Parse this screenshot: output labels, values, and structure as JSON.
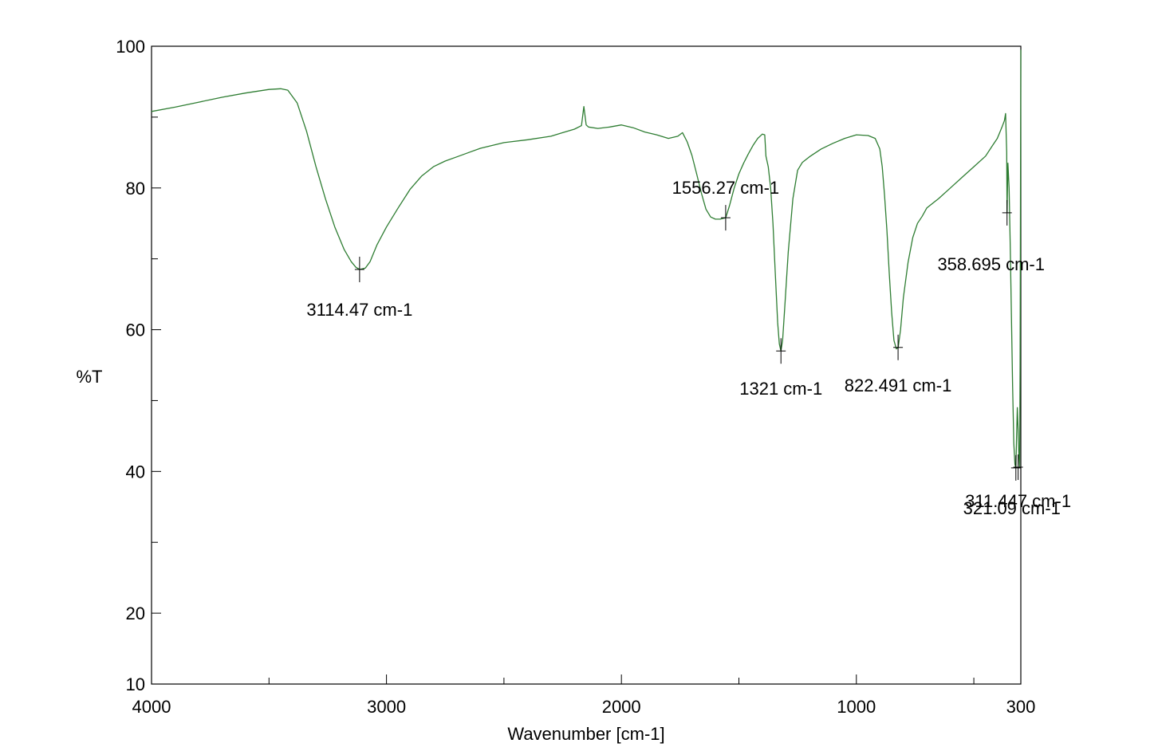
{
  "chart_data": {
    "type": "line",
    "xlabel": "Wavenumber [cm-1]",
    "ylabel": "%T",
    "xlim": [
      4000,
      300
    ],
    "ylim": [
      10,
      100
    ],
    "x_reversed": true,
    "x_ticks": [
      {
        "value": 4000,
        "label": "4000"
      },
      {
        "value": 3000,
        "label": "3000"
      },
      {
        "value": 2000,
        "label": "2000"
      },
      {
        "value": 1000,
        "label": "1000"
      },
      {
        "value": 300,
        "label": "300"
      }
    ],
    "x_minor_ticks": [
      3500,
      2500,
      1500,
      500
    ],
    "y_ticks": [
      {
        "value": 100,
        "label": "100"
      },
      {
        "value": 80,
        "label": "80"
      },
      {
        "value": 60,
        "label": "60"
      },
      {
        "value": 40,
        "label": "40"
      },
      {
        "value": 20,
        "label": "20"
      },
      {
        "value": 10,
        "label": "10"
      }
    ],
    "y_minor_ticks": [
      90,
      70,
      50,
      30
    ],
    "grid": false,
    "series_color": "#2e7d32",
    "series": [
      {
        "x": [
          4000,
          3900,
          3800,
          3700,
          3600,
          3500,
          3450,
          3420,
          3380,
          3340,
          3300,
          3260,
          3220,
          3180,
          3150,
          3130,
          3114,
          3090,
          3070,
          3040,
          3000,
          2950,
          2900,
          2850,
          2800,
          2750,
          2700,
          2650,
          2600,
          2500,
          2400,
          2300,
          2250,
          2200,
          2170,
          2160,
          2150,
          2140,
          2100,
          2050,
          2000,
          1950,
          1900,
          1850,
          1800,
          1760,
          1740,
          1720,
          1700,
          1680,
          1660,
          1640,
          1620,
          1600,
          1580,
          1556,
          1540,
          1520,
          1500,
          1480,
          1460,
          1440,
          1420,
          1400,
          1390,
          1385,
          1375,
          1365,
          1355,
          1345,
          1335,
          1328,
          1321,
          1314,
          1305,
          1290,
          1270,
          1250,
          1230,
          1200,
          1150,
          1100,
          1050,
          1000,
          950,
          920,
          900,
          890,
          880,
          870,
          860,
          850,
          840,
          830,
          822,
          812,
          800,
          780,
          760,
          740,
          720,
          700,
          650,
          600,
          550,
          500,
          450,
          420,
          400,
          390,
          380,
          370,
          365,
          360,
          358.7,
          355,
          350,
          345,
          340,
          335,
          330,
          325,
          321,
          318,
          315,
          311.4,
          308,
          305,
          303,
          301,
          300
        ],
        "values": [
          90.8,
          91.4,
          92.1,
          92.8,
          93.4,
          93.9,
          94.0,
          93.8,
          92.0,
          88.0,
          83.0,
          78.5,
          74.5,
          71.3,
          69.6,
          68.8,
          68.5,
          68.7,
          69.6,
          72.0,
          74.5,
          77.2,
          79.8,
          81.7,
          83.0,
          83.8,
          84.4,
          85.0,
          85.6,
          86.4,
          86.8,
          87.3,
          87.8,
          88.3,
          88.8,
          91.5,
          88.9,
          88.6,
          88.4,
          88.6,
          88.9,
          88.5,
          87.9,
          87.5,
          87.0,
          87.3,
          87.8,
          86.5,
          84.6,
          82.0,
          79.3,
          77.0,
          75.9,
          75.6,
          75.6,
          75.8,
          77.5,
          80.0,
          82.0,
          83.5,
          84.8,
          86.0,
          87.0,
          87.6,
          87.5,
          84.5,
          83.0,
          80.0,
          75.0,
          68.0,
          61.0,
          58.0,
          57.0,
          58.5,
          63.0,
          71.0,
          78.5,
          82.5,
          83.6,
          84.4,
          85.5,
          86.3,
          87.0,
          87.5,
          87.4,
          87.0,
          85.5,
          83.0,
          79.0,
          74.0,
          68.0,
          62.5,
          58.5,
          57.3,
          57.5,
          60.0,
          64.5,
          69.5,
          73.0,
          75.0,
          76.0,
          77.2,
          78.5,
          80.0,
          81.5,
          83.0,
          84.5,
          86.0,
          87.0,
          87.8,
          88.6,
          89.5,
          90.5,
          85.0,
          76.5,
          83.5,
          80.0,
          72.0,
          62.0,
          52.0,
          44.0,
          41.0,
          40.5,
          45.0,
          49.0,
          46.0,
          42.0,
          40.6,
          55.0,
          85.0,
          99.5
        ]
      }
    ],
    "annotations": [
      {
        "text": "3114.47 cm-1",
        "x": 3114.47,
        "y": 68.5
      },
      {
        "text": "1556.27 cm-1",
        "x": 1556.27,
        "y": 75.8
      },
      {
        "text": "1321 cm-1",
        "x": 1321,
        "y": 57.0
      },
      {
        "text": "822.491 cm-1",
        "x": 822.491,
        "y": 57.5
      },
      {
        "text": "358.695 cm-1",
        "x": 358.695,
        "y": 76.5
      },
      {
        "text": "311.447 cm-1",
        "x": 311.447,
        "y": 40.6
      },
      {
        "text": "321.09 cm-1",
        "x": 321.09,
        "y": 40.5
      }
    ]
  }
}
